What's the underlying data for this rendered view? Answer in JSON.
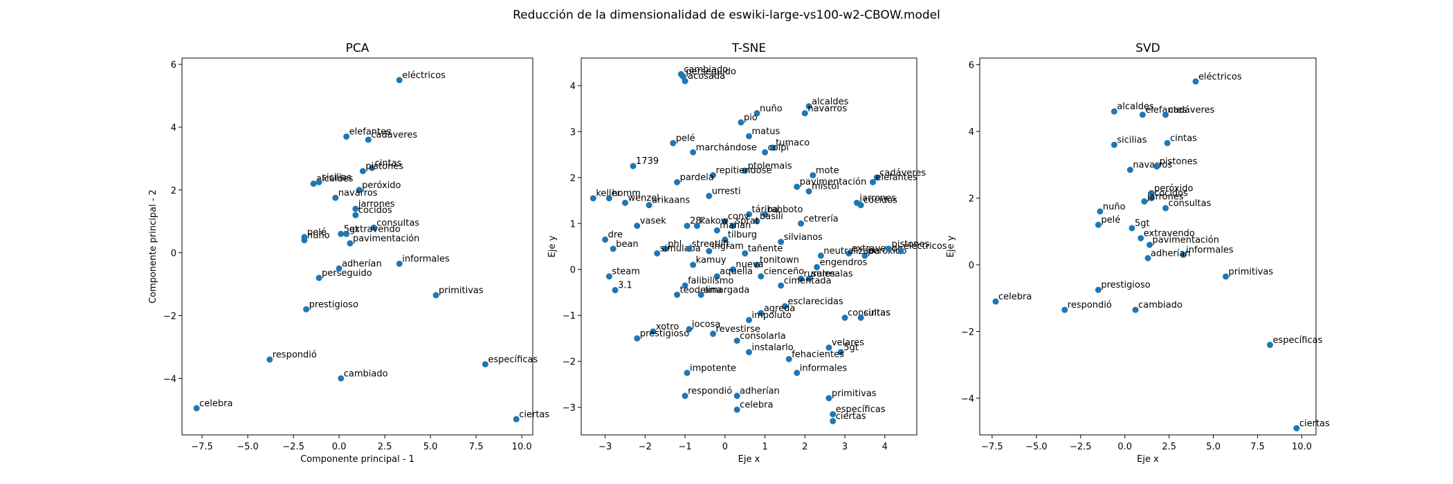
{
  "suptitle": "Reducción de la dimensionalidad de eswiki-large-vs100-w2-CBOW.model",
  "marker_color": "#1f77b4",
  "chart_data": [
    {
      "type": "scatter",
      "title": "PCA",
      "xlabel": "Componente principal - 1",
      "ylabel": "Componente principal - 2",
      "xlim": [
        -8.6,
        10.6
      ],
      "ylim": [
        -5.8,
        6.2
      ],
      "xticks": [
        -7.5,
        -5.0,
        -2.5,
        0.0,
        2.5,
        5.0,
        7.5,
        10.0
      ],
      "xtick_labels": [
        "−7.5",
        "−5.0",
        "−2.5",
        "0.0",
        "2.5",
        "5.0",
        "7.5",
        "10.0"
      ],
      "yticks": [
        -4,
        -2,
        0,
        2,
        4,
        6
      ],
      "ytick_labels": [
        "−4",
        "−2",
        "0",
        "2",
        "4",
        "6"
      ],
      "points": [
        {
          "label": "eléctricos",
          "x": 3.3,
          "y": 5.5
        },
        {
          "label": "elefantes",
          "x": 0.4,
          "y": 3.7
        },
        {
          "label": "cadáveres",
          "x": 1.6,
          "y": 3.6
        },
        {
          "label": "cintas",
          "x": 1.8,
          "y": 2.7
        },
        {
          "label": "pistones",
          "x": 1.3,
          "y": 2.6
        },
        {
          "label": "alcaldes",
          "x": -1.4,
          "y": 2.2
        },
        {
          "label": "sicilias",
          "x": -1.1,
          "y": 2.25
        },
        {
          "label": "peróxido",
          "x": 1.1,
          "y": 2.0
        },
        {
          "label": "navarros",
          "x": -0.2,
          "y": 1.75
        },
        {
          "label": "jarrones",
          "x": 0.9,
          "y": 1.4
        },
        {
          "label": "cocidos",
          "x": 0.9,
          "y": 1.2
        },
        {
          "label": "consultas",
          "x": 1.9,
          "y": 0.8
        },
        {
          "label": "pelé",
          "x": -1.9,
          "y": 0.5
        },
        {
          "label": "nuño",
          "x": -1.9,
          "y": 0.4
        },
        {
          "label": "5gt",
          "x": 0.1,
          "y": 0.6
        },
        {
          "label": "extravendo",
          "x": 0.4,
          "y": 0.6
        },
        {
          "label": "pavimentación",
          "x": 0.6,
          "y": 0.3
        },
        {
          "label": "informales",
          "x": 3.3,
          "y": -0.35
        },
        {
          "label": "perseguido",
          "x": -1.1,
          "y": -0.8
        },
        {
          "label": "adherían",
          "x": 0.0,
          "y": -0.5
        },
        {
          "label": "primitivas",
          "x": 5.3,
          "y": -1.35
        },
        {
          "label": "prestigioso",
          "x": -1.8,
          "y": -1.8
        },
        {
          "label": "respondió",
          "x": -3.8,
          "y": -3.4
        },
        {
          "label": "cambiado",
          "x": 0.1,
          "y": -4.0
        },
        {
          "label": "específicas",
          "x": 8.0,
          "y": -3.55
        },
        {
          "label": "celebra",
          "x": -7.8,
          "y": -4.95
        },
        {
          "label": "ciertas",
          "x": 9.7,
          "y": -5.3
        }
      ]
    },
    {
      "type": "scatter",
      "title": "T-SNE",
      "xlabel": "Eje x",
      "ylabel": "Eje y",
      "xlim": [
        -3.6,
        4.8
      ],
      "ylim": [
        -3.6,
        4.6
      ],
      "xticks": [
        -3,
        -2,
        -1,
        0,
        1,
        2,
        3,
        4
      ],
      "xtick_labels": [
        "−3",
        "−2",
        "−1",
        "0",
        "1",
        "2",
        "3",
        "4"
      ],
      "yticks": [
        -3,
        -2,
        -1,
        0,
        1,
        2,
        3,
        4
      ],
      "ytick_labels": [
        "−3",
        "−2",
        "−1",
        "0",
        "1",
        "2",
        "3",
        "4"
      ],
      "points": [
        {
          "label": "cambiado",
          "x": -1.1,
          "y": 4.25
        },
        {
          "label": "perseguido",
          "x": -1.05,
          "y": 4.2
        },
        {
          "label": "acosada",
          "x": -1.0,
          "y": 4.1
        },
        {
          "label": "alcaldes",
          "x": 2.1,
          "y": 3.55
        },
        {
          "label": "navarros",
          "x": 2.0,
          "y": 3.4
        },
        {
          "label": "nuño",
          "x": 0.8,
          "y": 3.4
        },
        {
          "label": "pio",
          "x": 0.4,
          "y": 3.2
        },
        {
          "label": "matus",
          "x": 0.6,
          "y": 2.9
        },
        {
          "label": "pelé",
          "x": -1.3,
          "y": 2.75
        },
        {
          "label": "tumaco",
          "x": 1.2,
          "y": 2.65
        },
        {
          "label": "marchándose",
          "x": -0.8,
          "y": 2.55
        },
        {
          "label": "colpi",
          "x": 1.0,
          "y": 2.55
        },
        {
          "label": "1739",
          "x": -2.3,
          "y": 2.25
        },
        {
          "label": "ptolemais",
          "x": 0.5,
          "y": 2.15
        },
        {
          "label": "repitiendose",
          "x": -0.3,
          "y": 2.05
        },
        {
          "label": "mote",
          "x": 2.2,
          "y": 2.05
        },
        {
          "label": "cadáveres",
          "x": 3.8,
          "y": 2.0
        },
        {
          "label": "elefantes",
          "x": 3.7,
          "y": 1.9
        },
        {
          "label": "pardela",
          "x": -1.2,
          "y": 1.9
        },
        {
          "label": "pavimentación",
          "x": 1.8,
          "y": 1.8
        },
        {
          "label": "mistol",
          "x": 2.1,
          "y": 1.7
        },
        {
          "label": "urresti",
          "x": -0.4,
          "y": 1.6
        },
        {
          "label": "keller",
          "x": -3.3,
          "y": 1.55
        },
        {
          "label": "homm",
          "x": -2.9,
          "y": 1.55
        },
        {
          "label": "wenzel",
          "x": -2.5,
          "y": 1.45
        },
        {
          "label": "arikaans",
          "x": -1.9,
          "y": 1.4
        },
        {
          "label": "jarrones",
          "x": 3.3,
          "y": 1.45
        },
        {
          "label": "cocidos",
          "x": 3.4,
          "y": 1.4
        },
        {
          "label": "táriba",
          "x": 0.6,
          "y": 1.2
        },
        {
          "label": "rabboto",
          "x": 1.0,
          "y": 1.2
        },
        {
          "label": "conv",
          "x": 0.0,
          "y": 1.05
        },
        {
          "label": "basili",
          "x": 0.8,
          "y": 1.05
        },
        {
          "label": "vasek",
          "x": -2.2,
          "y": 0.95
        },
        {
          "label": "28°",
          "x": -0.95,
          "y": 0.95
        },
        {
          "label": "kakow",
          "x": -0.7,
          "y": 0.95
        },
        {
          "label": "sprat",
          "x": 0.2,
          "y": 0.95
        },
        {
          "label": "cetrería",
          "x": 1.9,
          "y": 1.0
        },
        {
          "label": "mahan",
          "x": -0.2,
          "y": 0.85
        },
        {
          "label": "dre",
          "x": -3.0,
          "y": 0.65
        },
        {
          "label": "bean",
          "x": -2.8,
          "y": 0.45
        },
        {
          "label": "silvianos",
          "x": 1.4,
          "y": 0.6
        },
        {
          "label": "tilburg",
          "x": 0.0,
          "y": 0.65
        },
        {
          "label": "phl",
          "x": -1.5,
          "y": 0.45
        },
        {
          "label": "simulaba",
          "x": -1.7,
          "y": 0.35
        },
        {
          "label": "streetlift",
          "x": -0.9,
          "y": 0.45
        },
        {
          "label": "ingram",
          "x": -0.4,
          "y": 0.4
        },
        {
          "label": "tañente",
          "x": 0.5,
          "y": 0.35
        },
        {
          "label": "extravendo",
          "x": 3.1,
          "y": 0.35
        },
        {
          "label": "peróxido",
          "x": 3.5,
          "y": 0.3
        },
        {
          "label": "pistones",
          "x": 4.1,
          "y": 0.45
        },
        {
          "label": "eléctricos",
          "x": 4.4,
          "y": 0.4
        },
        {
          "label": "neutralizaba",
          "x": 2.4,
          "y": 0.3
        },
        {
          "label": "tonitown",
          "x": 0.8,
          "y": 0.1
        },
        {
          "label": "kamuy",
          "x": -0.8,
          "y": 0.1
        },
        {
          "label": "engendros",
          "x": 2.3,
          "y": 0.05
        },
        {
          "label": "nueva",
          "x": 0.2,
          "y": 0.0
        },
        {
          "label": "aquella",
          "x": -0.2,
          "y": -0.15
        },
        {
          "label": "cienceño",
          "x": 0.9,
          "y": -0.15
        },
        {
          "label": "surrealas",
          "x": 2.1,
          "y": -0.2
        },
        {
          "label": "rurales",
          "x": 1.9,
          "y": -0.2
        },
        {
          "label": "cimentada",
          "x": 1.4,
          "y": -0.35
        },
        {
          "label": "steam",
          "x": -2.9,
          "y": -0.15
        },
        {
          "label": "3.1",
          "x": -2.75,
          "y": -0.45
        },
        {
          "label": "falibilismo",
          "x": -1.0,
          "y": -0.35
        },
        {
          "label": "teodelina",
          "x": -1.2,
          "y": -0.55
        },
        {
          "label": "amargada",
          "x": -0.6,
          "y": -0.55
        },
        {
          "label": "esclarecidas",
          "x": 1.5,
          "y": -0.8
        },
        {
          "label": "agreda",
          "x": 0.9,
          "y": -0.95
        },
        {
          "label": "impoluto",
          "x": 0.6,
          "y": -1.1
        },
        {
          "label": "consultas",
          "x": 3.0,
          "y": -1.05
        },
        {
          "label": "cintas",
          "x": 3.4,
          "y": -1.05
        },
        {
          "label": "jocosa",
          "x": -0.9,
          "y": -1.3
        },
        {
          "label": "xotro",
          "x": -1.8,
          "y": -1.35
        },
        {
          "label": "prestigioso",
          "x": -2.2,
          "y": -1.5
        },
        {
          "label": "revestirse",
          "x": -0.3,
          "y": -1.4
        },
        {
          "label": "consolarla",
          "x": 0.3,
          "y": -1.55
        },
        {
          "label": "instalarlo",
          "x": 0.6,
          "y": -1.8
        },
        {
          "label": "velares",
          "x": 2.6,
          "y": -1.7
        },
        {
          "label": "5gt",
          "x": 2.9,
          "y": -1.8
        },
        {
          "label": "fehacientes",
          "x": 1.6,
          "y": -1.95
        },
        {
          "label": "informales",
          "x": 1.8,
          "y": -2.25
        },
        {
          "label": "impotente",
          "x": -0.95,
          "y": -2.25
        },
        {
          "label": "respondió",
          "x": -1.0,
          "y": -2.75
        },
        {
          "label": "adherían",
          "x": 0.3,
          "y": -2.75
        },
        {
          "label": "primitivas",
          "x": 2.6,
          "y": -2.8
        },
        {
          "label": "celebra",
          "x": 0.3,
          "y": -3.05
        },
        {
          "label": "específicas",
          "x": 2.7,
          "y": -3.15
        },
        {
          "label": "ciertas",
          "x": 2.7,
          "y": -3.3
        }
      ]
    },
    {
      "type": "scatter",
      "title": "SVD",
      "xlabel": "Eje x",
      "ylabel": "Eje y",
      "xlim": [
        -8.2,
        10.8
      ],
      "ylim": [
        -5.1,
        6.2
      ],
      "xticks": [
        -7.5,
        -5.0,
        -2.5,
        0.0,
        2.5,
        5.0,
        7.5,
        10.0
      ],
      "xtick_labels": [
        "−7.5",
        "−5.0",
        "−2.5",
        "0.0",
        "2.5",
        "5.0",
        "7.5",
        "10.0"
      ],
      "yticks": [
        -4,
        -2,
        0,
        2,
        4,
        6
      ],
      "ytick_labels": [
        "−4",
        "−2",
        "0",
        "2",
        "4",
        "6"
      ],
      "points": [
        {
          "label": "eléctricos",
          "x": 4.0,
          "y": 5.5
        },
        {
          "label": "alcaldes",
          "x": -0.6,
          "y": 4.6
        },
        {
          "label": "elefantes",
          "x": 1.0,
          "y": 4.5
        },
        {
          "label": "cadáveres",
          "x": 2.3,
          "y": 4.5
        },
        {
          "label": "cintas",
          "x": 2.4,
          "y": 3.65
        },
        {
          "label": "sicilias",
          "x": -0.6,
          "y": 3.6
        },
        {
          "label": "navarros",
          "x": 0.3,
          "y": 2.85
        },
        {
          "label": "pistones",
          "x": 1.8,
          "y": 2.95
        },
        {
          "label": "peróxido",
          "x": 1.5,
          "y": 2.15
        },
        {
          "label": "cocidos",
          "x": 1.5,
          "y": 2.0
        },
        {
          "label": "jarrones",
          "x": 1.1,
          "y": 1.9
        },
        {
          "label": "consultas",
          "x": 2.3,
          "y": 1.7
        },
        {
          "label": "nuño",
          "x": -1.4,
          "y": 1.6
        },
        {
          "label": "pelé",
          "x": -1.5,
          "y": 1.2
        },
        {
          "label": "5gt",
          "x": 0.4,
          "y": 1.1
        },
        {
          "label": "extravendo",
          "x": 0.9,
          "y": 0.8
        },
        {
          "label": "pavimentación",
          "x": 1.4,
          "y": 0.6
        },
        {
          "label": "informales",
          "x": 3.3,
          "y": 0.3
        },
        {
          "label": "adherían",
          "x": 1.3,
          "y": 0.2
        },
        {
          "label": "primitivas",
          "x": 5.7,
          "y": -0.35
        },
        {
          "label": "prestigioso",
          "x": -1.5,
          "y": -0.75
        },
        {
          "label": "celebra",
          "x": -7.3,
          "y": -1.1
        },
        {
          "label": "respondió",
          "x": -3.4,
          "y": -1.35
        },
        {
          "label": "cambiado",
          "x": 0.6,
          "y": -1.35
        },
        {
          "label": "específicas",
          "x": 8.2,
          "y": -2.4
        },
        {
          "label": "ciertas",
          "x": 9.7,
          "y": -4.9
        }
      ]
    }
  ]
}
